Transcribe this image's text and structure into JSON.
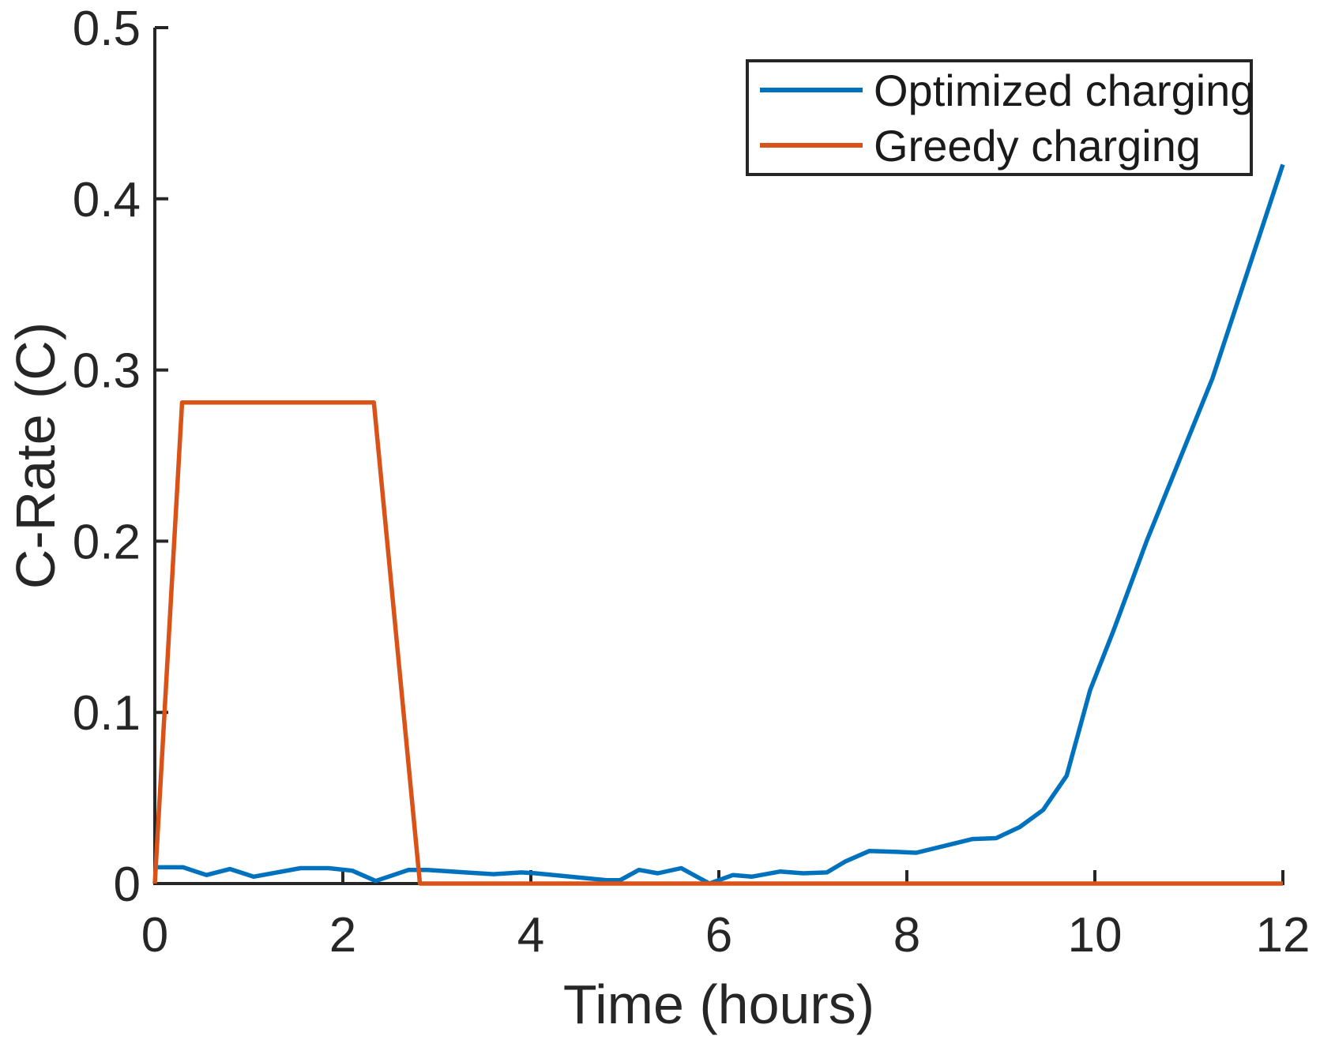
{
  "figure": {
    "background": "#ffffff",
    "axis_color": "#262626"
  },
  "chart_data": {
    "type": "line",
    "title": "",
    "xlabel": "Time (hours)",
    "ylabel": "C-Rate (C)",
    "xlim": [
      0,
      12
    ],
    "ylim": [
      0,
      0.5
    ],
    "x_ticks": [
      0,
      2,
      4,
      6,
      8,
      10,
      12
    ],
    "x_tick_labels": [
      "0",
      "2",
      "4",
      "6",
      "8",
      "10",
      "12"
    ],
    "y_ticks": [
      0,
      0.1,
      0.2,
      0.3,
      0.4,
      0.5
    ],
    "y_tick_labels": [
      "0",
      "0.1",
      "0.2",
      "0.3",
      "0.4",
      "0.5"
    ],
    "grid": false,
    "legend": {
      "position": "top-right",
      "border_color": "#262626",
      "background": "#ffffff"
    },
    "series": [
      {
        "name": "Optimized charging",
        "color": "#0072BD",
        "points": [
          [
            0.0,
            0.0095
          ],
          [
            0.3,
            0.0095
          ],
          [
            0.55,
            0.005
          ],
          [
            0.8,
            0.0085
          ],
          [
            1.05,
            0.004
          ],
          [
            1.55,
            0.009
          ],
          [
            1.85,
            0.009
          ],
          [
            2.1,
            0.0075
          ],
          [
            2.35,
            0.0015
          ],
          [
            2.7,
            0.008
          ],
          [
            2.9,
            0.008
          ],
          [
            3.3,
            0.0065
          ],
          [
            3.6,
            0.0055
          ],
          [
            3.9,
            0.0065
          ],
          [
            4.05,
            0.006
          ],
          [
            4.8,
            0.002
          ],
          [
            4.95,
            0.002
          ],
          [
            5.15,
            0.008
          ],
          [
            5.35,
            0.006
          ],
          [
            5.6,
            0.009
          ],
          [
            5.9,
            0.0
          ],
          [
            6.15,
            0.005
          ],
          [
            6.35,
            0.004
          ],
          [
            6.65,
            0.007
          ],
          [
            6.9,
            0.006
          ],
          [
            7.15,
            0.0065
          ],
          [
            7.35,
            0.013
          ],
          [
            7.6,
            0.019
          ],
          [
            7.9,
            0.0185
          ],
          [
            8.1,
            0.018
          ],
          [
            8.4,
            0.022
          ],
          [
            8.7,
            0.026
          ],
          [
            8.95,
            0.0265
          ],
          [
            9.2,
            0.033
          ],
          [
            9.45,
            0.043
          ],
          [
            9.7,
            0.063
          ],
          [
            9.95,
            0.113
          ],
          [
            10.2,
            0.148
          ],
          [
            10.55,
            0.2
          ],
          [
            11.25,
            0.295
          ],
          [
            12.0,
            0.42
          ]
        ]
      },
      {
        "name": "Greedy charging",
        "color": "#D95319",
        "points": [
          [
            0.0,
            0.0
          ],
          [
            0.29,
            0.281
          ],
          [
            2.33,
            0.281
          ],
          [
            2.82,
            0.0
          ],
          [
            12.0,
            0.0
          ]
        ]
      }
    ]
  }
}
